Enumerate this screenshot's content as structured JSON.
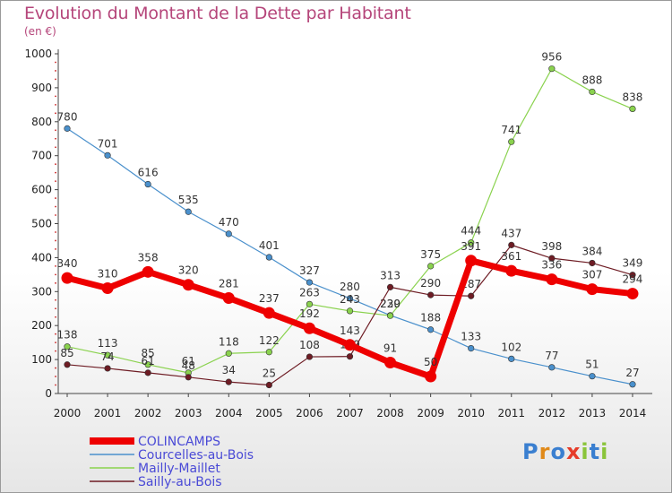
{
  "title": "Evolution du Montant de la Dette par Habitant",
  "subtitle": "(en €)",
  "logo_text": "Proxiti",
  "chart_data": {
    "type": "line",
    "title": "Evolution du Montant de la Dette par Habitant",
    "ylabel": "(en €)",
    "xlabel": "",
    "ylim": [
      0,
      1000
    ],
    "yticks": [
      "0",
      "100",
      "200",
      "300",
      "400",
      "500",
      "600",
      "700",
      "800",
      "900",
      "1000"
    ],
    "categories": [
      "2000",
      "2001",
      "2002",
      "2003",
      "2004",
      "2005",
      "2006",
      "2007",
      "2008",
      "2009",
      "2010",
      "2011",
      "2012",
      "2013",
      "2014"
    ],
    "legend_position": "bottom-left",
    "series": [
      {
        "name": "Courcelles-au-Bois",
        "color": "#4a90cc",
        "values": [
          780,
          701,
          616,
          535,
          470,
          401,
          327,
          280,
          230,
          188,
          133,
          102,
          77,
          51,
          27
        ]
      },
      {
        "name": "Mailly-Maillet",
        "color": "#8ad24e",
        "values": [
          138,
          113,
          85,
          61,
          118,
          122,
          263,
          243,
          229,
          375,
          444,
          741,
          956,
          888,
          838
        ]
      },
      {
        "name": "Sailly-au-Bois",
        "color": "#6e1c24",
        "values": [
          85,
          74,
          61,
          48,
          34,
          25,
          108,
          109,
          313,
          290,
          287,
          437,
          398,
          384,
          349
        ]
      },
      {
        "name": "COLINCAMPS",
        "color": "#ee0000",
        "values": [
          340,
          310,
          358,
          320,
          281,
          237,
          192,
          143,
          91,
          50,
          391,
          361,
          336,
          307,
          294
        ]
      }
    ],
    "legend_order": [
      "COLINCAMPS",
      "Courcelles-au-Bois",
      "Mailly-Maillet",
      "Sailly-au-Bois"
    ]
  }
}
